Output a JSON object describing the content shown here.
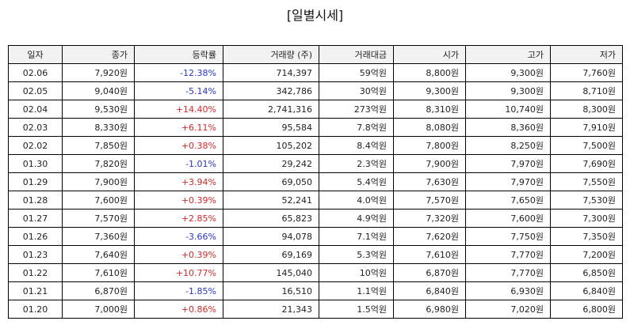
{
  "title": "[일별시세]",
  "colors": {
    "up": "#d22a2a",
    "down": "#2a35c8",
    "header_bg": "#f2f2f2"
  },
  "headers": [
    "일자",
    "종가",
    "등락률",
    "거래량 (주)",
    "거래대금",
    "시가",
    "고가",
    "저가"
  ],
  "rows": [
    [
      "02.06",
      "7,920원",
      "-12.38%",
      "714,397",
      "59억원",
      "8,800원",
      "9,300원",
      "7,760원"
    ],
    [
      "02.05",
      "9,040원",
      "-5.14%",
      "342,786",
      "30억원",
      "9,300원",
      "9,300원",
      "8,710원"
    ],
    [
      "02.04",
      "9,530원",
      "+14.40%",
      "2,741,316",
      "273억원",
      "8,310원",
      "10,740원",
      "8,300원"
    ],
    [
      "02.03",
      "8,330원",
      "+6.11%",
      "95,584",
      "7.8억원",
      "8,080원",
      "8,360원",
      "7,910원"
    ],
    [
      "02.02",
      "7,850원",
      "+0.38%",
      "105,202",
      "8.4억원",
      "7,800원",
      "8,250원",
      "7,500원"
    ],
    [
      "01.30",
      "7,820원",
      "-1.01%",
      "29,242",
      "2.3억원",
      "7,900원",
      "7,970원",
      "7,690원"
    ],
    [
      "01.29",
      "7,900원",
      "+3.94%",
      "69,050",
      "5.4억원",
      "7,630원",
      "7,970원",
      "7,550원"
    ],
    [
      "01.28",
      "7,600원",
      "+0.39%",
      "52,241",
      "4.0억원",
      "7,570원",
      "7,650원",
      "7,530원"
    ],
    [
      "01.27",
      "7,570원",
      "+2.85%",
      "65,823",
      "4.9억원",
      "7,320원",
      "7,600원",
      "7,300원"
    ],
    [
      "01.26",
      "7,360원",
      "-3.66%",
      "94,078",
      "7.1억원",
      "7,620원",
      "7,750원",
      "7,350원"
    ],
    [
      "01.23",
      "7,640원",
      "+0.39%",
      "69,169",
      "5.3억원",
      "7,610원",
      "7,770원",
      "7,200원"
    ],
    [
      "01.22",
      "7,610원",
      "+10.77%",
      "145,040",
      "10억원",
      "6,870원",
      "7,770원",
      "6,850원"
    ],
    [
      "01.21",
      "6,870원",
      "-1.85%",
      "16,510",
      "1.1억원",
      "6,840원",
      "6,930원",
      "6,840원"
    ],
    [
      "01.20",
      "7,000원",
      "+0.86%",
      "21,343",
      "1.5억원",
      "6,980원",
      "7,020원",
      "6,800원"
    ]
  ]
}
